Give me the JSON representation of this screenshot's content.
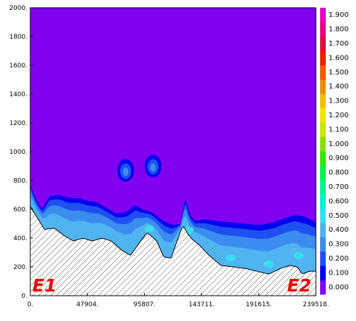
{
  "chart_data": {
    "type": "heatmap",
    "xlim": [
      0,
      239518
    ],
    "ylim": [
      0,
      2000
    ],
    "x_ticks": [
      "0.",
      "47904.",
      "95807.",
      "143711.",
      "191615.",
      "239518."
    ],
    "x_tick_values": [
      0,
      47904,
      95807,
      143711,
      191615,
      239518
    ],
    "y_ticks": [
      "0.",
      "200.",
      "400.",
      "600.",
      "800.",
      "1000.",
      "1200.",
      "1400.",
      "1600.",
      "1800.",
      "2000."
    ],
    "y_tick_values": [
      0,
      200,
      400,
      600,
      800,
      1000,
      1200,
      1400,
      1600,
      1800,
      2000
    ],
    "colorbar": {
      "levels": [
        "0.000",
        "0.100",
        "0.200",
        "0.300",
        "0.400",
        "0.500",
        "0.600",
        "0.700",
        "0.800",
        "0.900",
        "1.000",
        "1.100",
        "1.200",
        "1.300",
        "1.400",
        "1.500",
        "1.600",
        "1.700",
        "1.800",
        "1.900"
      ],
      "colors": [
        "#8200f0",
        "#0000f0",
        "#1e50f0",
        "#3c8cf0",
        "#50b4f0",
        "#3cdcf0",
        "#00f0d2",
        "#00f096",
        "#00f050",
        "#32e600",
        "#8cdc00",
        "#c8e600",
        "#f0e600",
        "#f0be00",
        "#f08c00",
        "#f05a00",
        "#f01e00",
        "#e6003c",
        "#e60082",
        "#e600c8"
      ]
    },
    "annotations": [
      "E1",
      "E2"
    ],
    "terrain_height": [
      [
        0,
        620
      ],
      [
        6000,
        540
      ],
      [
        12000,
        460
      ],
      [
        20000,
        470
      ],
      [
        28000,
        420
      ],
      [
        36000,
        380
      ],
      [
        44000,
        400
      ],
      [
        52000,
        380
      ],
      [
        60000,
        400
      ],
      [
        68000,
        380
      ],
      [
        76000,
        320
      ],
      [
        84000,
        280
      ],
      [
        90000,
        350
      ],
      [
        98000,
        440
      ],
      [
        106000,
        380
      ],
      [
        112000,
        270
      ],
      [
        118000,
        260
      ],
      [
        124000,
        400
      ],
      [
        128000,
        490
      ],
      [
        132000,
        430
      ],
      [
        136000,
        390
      ],
      [
        142000,
        350
      ],
      [
        150000,
        280
      ],
      [
        160000,
        210
      ],
      [
        170000,
        200
      ],
      [
        180000,
        190
      ],
      [
        190000,
        170
      ],
      [
        200000,
        150
      ],
      [
        210000,
        190
      ],
      [
        218000,
        210
      ],
      [
        224000,
        200
      ],
      [
        228000,
        150
      ],
      [
        234000,
        170
      ],
      [
        239518,
        170
      ]
    ],
    "field_top_0.1": [
      [
        0,
        780
      ],
      [
        4000,
        680
      ],
      [
        10000,
        600
      ],
      [
        16000,
        690
      ],
      [
        24000,
        700
      ],
      [
        32000,
        680
      ],
      [
        40000,
        680
      ],
      [
        48000,
        660
      ],
      [
        56000,
        650
      ],
      [
        64000,
        610
      ],
      [
        72000,
        570
      ],
      [
        80000,
        580
      ],
      [
        88000,
        630
      ],
      [
        94000,
        600
      ],
      [
        102000,
        580
      ],
      [
        108000,
        540
      ],
      [
        114000,
        510
      ],
      [
        120000,
        490
      ],
      [
        126000,
        500
      ],
      [
        130000,
        680
      ],
      [
        134000,
        560
      ],
      [
        138000,
        520
      ],
      [
        146000,
        530
      ],
      [
        156000,
        520
      ],
      [
        168000,
        510
      ],
      [
        180000,
        500
      ],
      [
        192000,
        490
      ],
      [
        204000,
        510
      ],
      [
        214000,
        540
      ],
      [
        222000,
        560
      ],
      [
        230000,
        550
      ],
      [
        239518,
        510
      ]
    ],
    "upper_blobs": [
      {
        "x": 80000,
        "y": 870
      },
      {
        "x": 103000,
        "y": 900
      }
    ]
  }
}
